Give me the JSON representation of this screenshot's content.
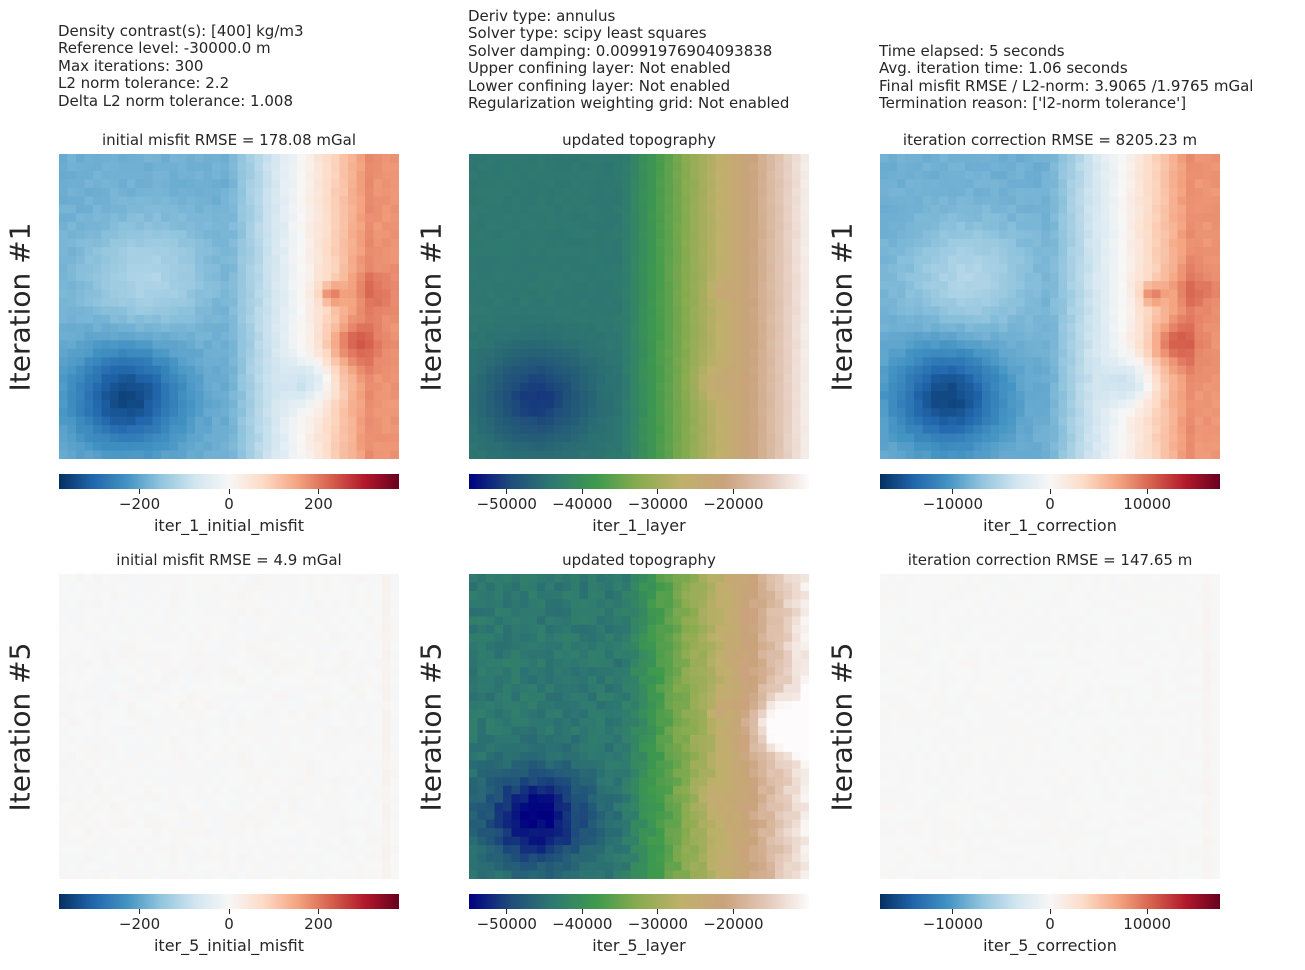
{
  "info": {
    "left": [
      "Density contrast(s): [400] kg/m3",
      "Reference level: -30000.0 m",
      "Max iterations: 300",
      "L2 norm tolerance: 2.2",
      "Delta L2 norm tolerance: 1.008"
    ],
    "middle": [
      "Deriv type: annulus",
      "Solver type: scipy least squares",
      "Solver damping: 0.00991976904093838",
      "Upper confining layer: Not enabled",
      "Lower confining layer: Not enabled",
      "Regularization weighting grid: Not enabled"
    ],
    "right": [
      "Time elapsed: 5 seconds",
      "Avg. iteration time: 1.06 seconds",
      "Final misfit RMSE / L2-norm: 3.9065 /1.9765 mGal",
      "Termination reason: ['l2-norm tolerance']"
    ]
  },
  "rows": [
    {
      "label": "Iteration #1"
    },
    {
      "label": "Iteration #5"
    }
  ],
  "colormaps": {
    "RdBu_r": [
      "#053061",
      "#2166ac",
      "#4393c3",
      "#92c5de",
      "#d1e5f0",
      "#f7f7f7",
      "#fddbc7",
      "#f4a582",
      "#d6604d",
      "#b2182b",
      "#67001f"
    ],
    "gist_earth": [
      "#000080",
      "#1f4e7b",
      "#2f7a70",
      "#3e9a4d",
      "#8aac4f",
      "#bfb06b",
      "#caa27c",
      "#e3c8b8",
      "#fdfbfb"
    ]
  },
  "chart_data": [
    {
      "type": "heatmap",
      "row": 0,
      "col": 0,
      "title": "initial misfit RMSE = 178.08 mGal",
      "colorbar_label": "iter_1_initial_misfit",
      "colormap": "RdBu_r",
      "vmin": -380,
      "vmax": 380,
      "ticks": [
        -200,
        0,
        200
      ],
      "tick_labels": [
        "−200",
        "0",
        "200"
      ],
      "field": "misfit",
      "scale": 1.0
    },
    {
      "type": "heatmap",
      "row": 0,
      "col": 1,
      "title": "updated topography",
      "colorbar_label": "iter_1_layer",
      "colormap": "gist_earth",
      "vmin": -55000,
      "vmax": -10000,
      "ticks": [
        -50000,
        -40000,
        -30000,
        -20000
      ],
      "tick_labels": [
        "−50000",
        "−40000",
        "−30000",
        "−20000"
      ],
      "field": "topo",
      "iteration": 1
    },
    {
      "type": "heatmap",
      "row": 0,
      "col": 2,
      "title": "iteration correction RMSE = 8205.23 m",
      "colorbar_label": "iter_1_correction",
      "colormap": "RdBu_r",
      "vmin": -17500,
      "vmax": 17500,
      "ticks": [
        -10000,
        0,
        10000
      ],
      "tick_labels": [
        "−10000",
        "0",
        "10000"
      ],
      "field": "misfit",
      "scale": 46.0
    },
    {
      "type": "heatmap",
      "row": 1,
      "col": 0,
      "title": "initial misfit RMSE = 4.9 mGal",
      "colorbar_label": "iter_5_initial_misfit",
      "colormap": "RdBu_r",
      "vmin": -380,
      "vmax": 380,
      "ticks": [
        -200,
        0,
        200
      ],
      "tick_labels": [
        "−200",
        "0",
        "200"
      ],
      "field": "residual",
      "scale": 4.9
    },
    {
      "type": "heatmap",
      "row": 1,
      "col": 1,
      "title": "updated topography",
      "colorbar_label": "iter_5_layer",
      "colormap": "gist_earth",
      "vmin": -55000,
      "vmax": -10000,
      "ticks": [
        -50000,
        -40000,
        -30000,
        -20000
      ],
      "tick_labels": [
        "−50000",
        "−40000",
        "−30000",
        "−20000"
      ],
      "field": "topo",
      "iteration": 5
    },
    {
      "type": "heatmap",
      "row": 1,
      "col": 2,
      "title": "iteration correction RMSE = 147.65 m",
      "colorbar_label": "iter_5_correction",
      "colormap": "RdBu_r",
      "vmin": -17500,
      "vmax": 17500,
      "ticks": [
        -10000,
        0,
        10000
      ],
      "tick_labels": [
        "−10000",
        "0",
        "10000"
      ],
      "field": "residual",
      "scale": 147.65
    }
  ]
}
